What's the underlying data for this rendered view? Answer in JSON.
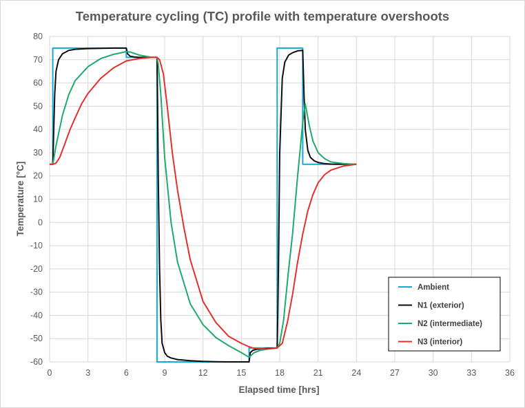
{
  "chart_data": {
    "type": "line",
    "title": "Temperature cycling (TC) profile with temperature overshoots",
    "xlabel": "Elapsed time [hrs]",
    "ylabel": "Temperature [°C]",
    "xlim": [
      0,
      36
    ],
    "ylim": [
      -60,
      80
    ],
    "xticks": [
      0,
      3,
      6,
      9,
      12,
      15,
      18,
      21,
      24,
      27,
      30,
      33,
      36
    ],
    "yticks": [
      80,
      70,
      60,
      50,
      40,
      30,
      20,
      10,
      0,
      -10,
      -20,
      -30,
      -40,
      -50,
      -60
    ],
    "xtick_labels": [
      "0",
      "3",
      "6",
      "9",
      "12",
      "15",
      "18",
      "21",
      "24",
      "27",
      "30",
      "33",
      "36"
    ],
    "ytick_labels": [
      "80",
      "70",
      "60",
      "50",
      "40",
      "30",
      "20",
      "10",
      "0",
      "-10",
      "-20",
      "-30",
      "-40",
      "-50",
      "-60"
    ],
    "grid": true,
    "legend_position": "bottom-right",
    "series": [
      {
        "name": "Ambient",
        "color": "#17a9d6",
        "x": [
          0,
          0.25,
          0.25,
          6.0,
          6.0,
          8.4,
          8.4,
          15.6,
          15.6,
          17.8,
          17.8,
          19.8,
          19.8,
          24.0
        ],
        "y": [
          25,
          25,
          75,
          75,
          71,
          71,
          -60,
          -60,
          -54,
          -54,
          75,
          75,
          25,
          25
        ]
      },
      {
        "name": "N1 (exterior)",
        "color": "#0d0d0d",
        "x": [
          0,
          0.25,
          0.3,
          0.4,
          0.5,
          0.7,
          1.0,
          1.5,
          2.0,
          3.0,
          4.0,
          5.0,
          6.0,
          6.1,
          6.3,
          6.6,
          7.0,
          8.0,
          8.4,
          8.45,
          8.5,
          8.6,
          8.7,
          8.8,
          9.0,
          9.2,
          9.5,
          10.0,
          11.0,
          12.0,
          13.0,
          14.0,
          15.0,
          15.6,
          15.7,
          15.9,
          16.2,
          16.6,
          17.0,
          17.8,
          17.85,
          17.9,
          18.0,
          18.2,
          18.4,
          18.7,
          19.0,
          19.4,
          19.8,
          19.85,
          19.9,
          20.0,
          20.2,
          20.4,
          20.7,
          21.0,
          21.5,
          22.0,
          23.0,
          24.0
        ],
        "y": [
          25,
          25,
          35,
          55,
          65,
          70,
          72.5,
          74,
          74.5,
          74.8,
          74.9,
          75,
          75,
          72.5,
          71.5,
          71.2,
          71,
          71,
          71,
          50,
          20,
          -20,
          -42,
          -52,
          -56,
          -57.5,
          -58.3,
          -59,
          -59.5,
          -59.8,
          -59.9,
          -60,
          -60,
          -60,
          -56,
          -55,
          -54.6,
          -54.4,
          -54.2,
          -54,
          -40,
          -20,
          30,
          62,
          69,
          72,
          73,
          73.8,
          74,
          65,
          55,
          40,
          31,
          28,
          26.5,
          25.8,
          25.3,
          25.1,
          25,
          25
        ]
      },
      {
        "name": "N2 (intermediate)",
        "color": "#1eaa6e",
        "x": [
          0,
          0.25,
          0.5,
          1.0,
          1.5,
          2.0,
          3.0,
          4.0,
          5.0,
          6.0,
          6.3,
          7.0,
          8.0,
          8.4,
          8.5,
          8.7,
          9.0,
          9.5,
          10.0,
          11.0,
          12.0,
          13.0,
          14.0,
          15.0,
          15.6,
          15.8,
          16.0,
          16.5,
          17.0,
          17.8,
          18.0,
          18.3,
          18.7,
          19.0,
          19.4,
          19.8,
          20.0,
          20.3,
          20.6,
          21.0,
          21.5,
          22.0,
          23.0,
          24.0
        ],
        "y": [
          25,
          25,
          33,
          46,
          55,
          61,
          67,
          70.5,
          72.3,
          73.5,
          73.3,
          72,
          71,
          71,
          68,
          55,
          28,
          0,
          -17,
          -35,
          -44,
          -49.5,
          -53,
          -56,
          -58,
          -57,
          -56,
          -55,
          -54.5,
          -54,
          -52,
          -42,
          -20,
          -5,
          20,
          43,
          51,
          42,
          35,
          30,
          27.5,
          26,
          25.3,
          25
        ]
      },
      {
        "name": "N3 (interior)",
        "color": "#e5302a",
        "x": [
          0,
          0.25,
          0.5,
          0.8,
          1.2,
          1.6,
          2.0,
          2.5,
          3.0,
          4.0,
          5.0,
          6.0,
          7.0,
          8.0,
          8.4,
          8.6,
          8.9,
          9.2,
          9.6,
          10.0,
          10.5,
          11.0,
          12.0,
          13.0,
          14.0,
          15.0,
          15.6,
          16.0,
          17.0,
          17.8,
          18.2,
          18.6,
          19.0,
          19.4,
          19.8,
          20.2,
          20.6,
          21.0,
          21.5,
          22.0,
          23.0,
          24.0
        ],
        "y": [
          25,
          25,
          25.5,
          28,
          34,
          40,
          45,
          51,
          55.5,
          62,
          66.5,
          69.5,
          70.5,
          71,
          71,
          70,
          64,
          50,
          30,
          14,
          -2,
          -16,
          -34,
          -43,
          -49,
          -52,
          -53.5,
          -54.2,
          -54.5,
          -54,
          -52,
          -43,
          -31,
          -17,
          -5,
          5,
          12,
          17,
          20.5,
          22.5,
          24.3,
          25
        ]
      }
    ]
  }
}
